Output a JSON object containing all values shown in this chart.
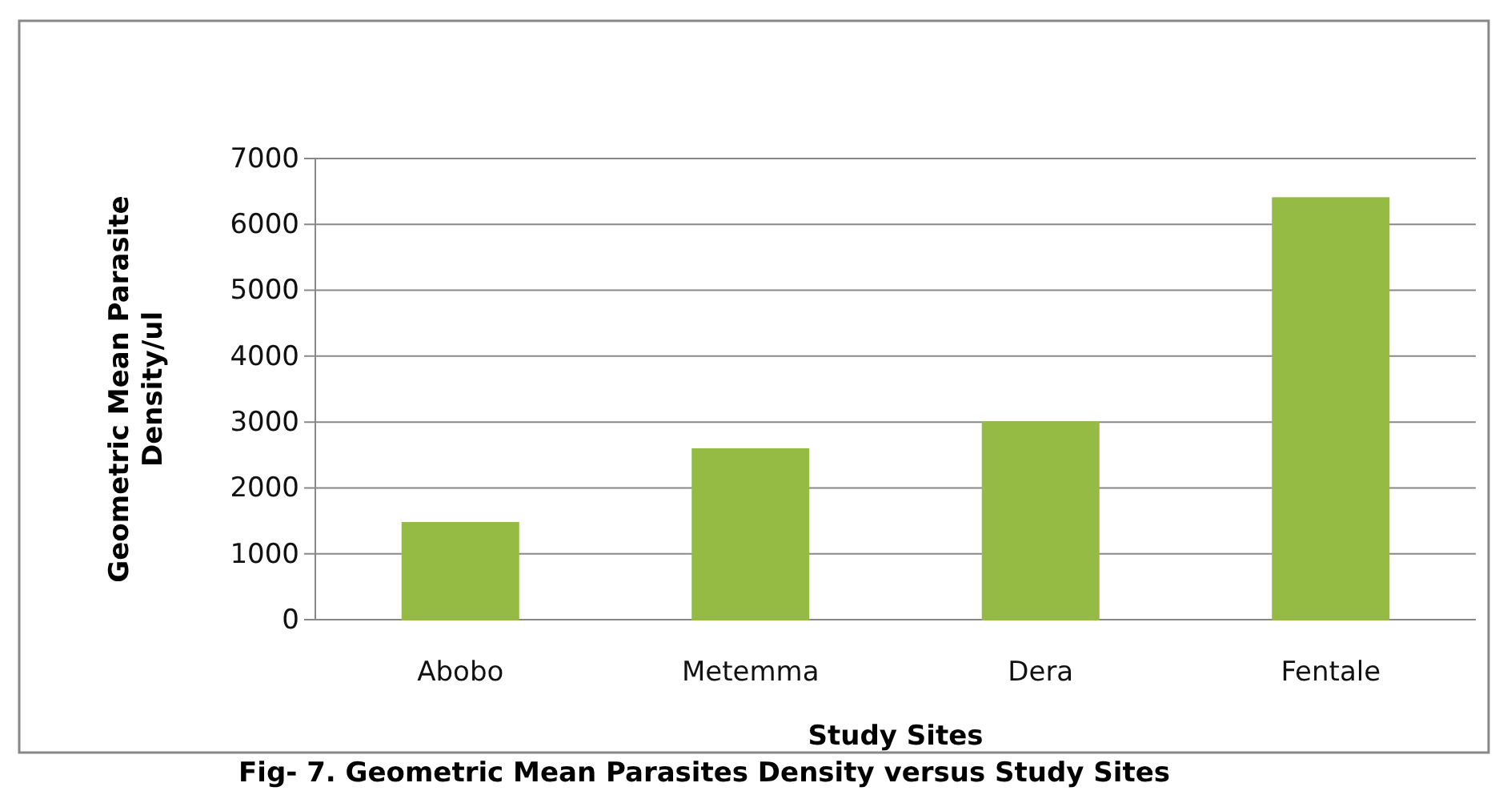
{
  "chart_data": {
    "type": "bar",
    "title": "Fig- 7. Geometric Mean Parasites Density versus Study Sites",
    "xlabel": "Study Sites",
    "ylabel": "Geometric Mean Parasite Density/ul",
    "categories": [
      "Abobo",
      "Metemma",
      "Dera",
      "Fentale"
    ],
    "values": [
      1470,
      2590,
      3000,
      6400
    ],
    "color": "#95bb45",
    "ylim": [
      0,
      7000
    ],
    "yticks": [
      0,
      1000,
      2000,
      3000,
      4000,
      5000,
      6000,
      7000
    ],
    "grid": "y"
  }
}
